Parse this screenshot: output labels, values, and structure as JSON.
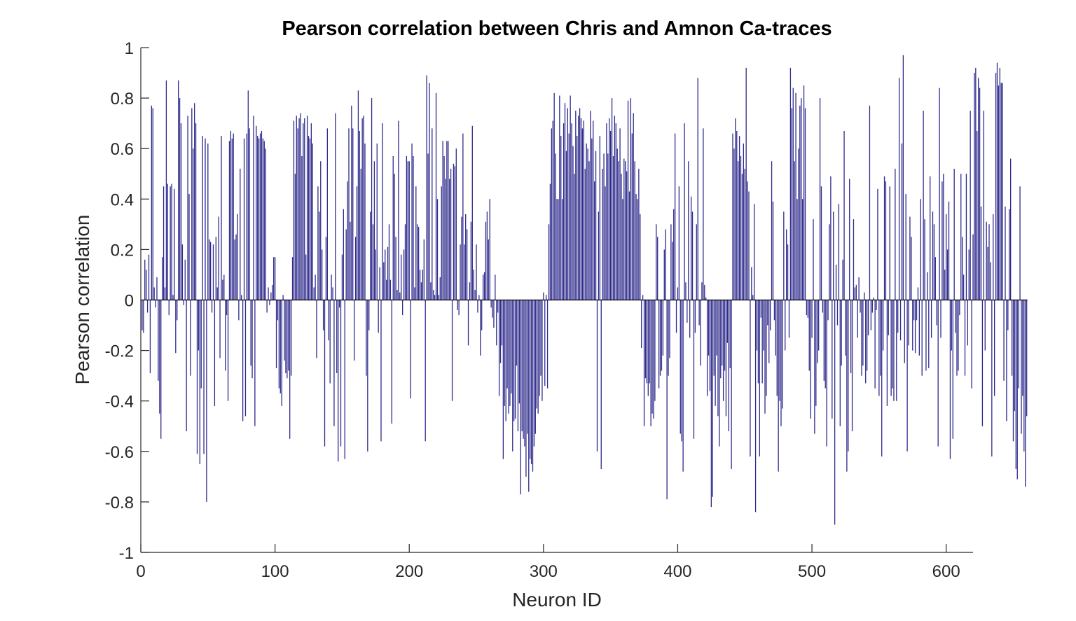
{
  "chart_data": {
    "type": "bar",
    "title": "Pearson correlation between Chris and Amnon Ca-traces",
    "xlabel": "Neuron ID",
    "ylabel": "Pearson correlation",
    "xlim": [
      0,
      620
    ],
    "ylim": [
      -1,
      1
    ],
    "xticks": [
      "0",
      "100",
      "200",
      "300",
      "400",
      "500",
      "600"
    ],
    "yticks": [
      "1",
      "0.8",
      "0.6",
      "0.4",
      "0.2",
      "0",
      "-0.2",
      "-0.4",
      "-0.6",
      "-0.8",
      "-1"
    ],
    "grid": false,
    "bar_color": "#2e2a8c",
    "note_values": "One bar per neuron (IDs 1-620); values read approximately from plot",
    "values": [
      -0.12,
      -0.13,
      0.16,
      0.12,
      -0.05,
      0.18,
      -0.29,
      0.77,
      0.76,
      0.05,
      -0.03,
      0.09,
      -0.32,
      -0.45,
      -0.55,
      0.17,
      0.45,
      0.05,
      0.87,
      0.46,
      -0.06,
      0.45,
      0.46,
      0.02,
      0.44,
      -0.21,
      -0.08,
      0.87,
      0.8,
      0.7,
      0.22,
      -0.02,
      0.16,
      -0.52,
      0.73,
      0.42,
      -0.3,
      0.76,
      0.6,
      0.78,
      0.7,
      -0.61,
      -0.2,
      -0.65,
      -0.35,
      0.65,
      -0.61,
      0.64,
      -0.8,
      0.62,
      0.24,
      0.23,
      -0.05,
      0.22,
      -0.42,
      0.25,
      0.05,
      0.33,
      -0.23,
      0.65,
      0.08,
      0.1,
      -0.28,
      -0.06,
      -0.4,
      0.63,
      0.67,
      0.64,
      0.66,
      0.24,
      0.26,
      0.34,
      -0.08,
      0.52,
      0.02,
      -0.48,
      0.64,
      -0.46,
      0.66,
      0.83,
      0.68,
      -0.26,
      -0.31,
      0.73,
      -0.5,
      0.69,
      0.65,
      0.64,
      0.66,
      0.67,
      0.64,
      0.63,
      0.6,
      -0.05,
      0.05,
      -0.02,
      0.03,
      0.06,
      0.17,
      0.17,
      -0.27,
      -0.08,
      -0.35,
      -0.37,
      -0.42,
      0.02,
      -0.24,
      -0.29,
      -0.31,
      -0.28,
      -0.55,
      -0.3,
      0.17,
      0.71,
      0.5,
      0.73,
      0.68,
      0.72,
      0.74,
      0.57,
      0.7,
      0.72,
      0.18,
      0.73,
      0.65,
      0.64,
      0.7,
      0.62,
      0.05,
      0.1,
      -0.23,
      0.45,
      0.35,
      0.55,
      0.2,
      -0.12,
      -0.58,
      0.25,
      0.68,
      -0.16,
      -0.33,
      0.1,
      0.05,
      -0.5,
      0.74,
      -0.29,
      -0.64,
      -0.03,
      -0.58,
      0.18,
      0.36,
      -0.63,
      0.28,
      0.47,
      0.68,
      0.31,
      0.77,
      0.68,
      -0.24,
      0.25,
      0.45,
      0.83,
      0.67,
      0.52,
      0.72,
      0.73,
      0.62,
      -0.3,
      -0.6,
      -0.12,
      0.35,
      0.8,
      0.3,
      0.55,
      0.2,
      0.62,
      -0.13,
      0.13,
      -0.56,
      0.7,
      0.15,
      0.2,
      0.08,
      0.21,
      0.3,
      0.08,
      -0.49,
      0.57,
      0.5,
      0.25,
      0.04,
      0.71,
      0.03,
      0.18,
      -0.06,
      0.2,
      0.3,
      0.57,
      0.55,
      0.55,
      -0.39,
      0.62,
      0.57,
      0.05,
      0.45,
      0.3,
      0.29,
      0.12,
      0.07,
      0.12,
      0.24,
      -0.56,
      0.89,
      0.58,
      0.86,
      0.07,
      0.68,
      0.04,
      0.02,
      0.82,
      0.4,
      0.02,
      0.09,
      0.45,
      0.63,
      0.57,
      0.48,
      0.63,
      0.63,
      0.48,
      0.52,
      -0.4,
      0.54,
      0.53,
      0.6,
      -0.04,
      -0.06,
      0.22,
      0.33,
      0.66,
      0.22,
      0.34,
      0.28,
      -0.18,
      0.07,
      0.31,
      0.69,
      0.12,
      0.04,
      0.22,
      -0.05,
      0.02,
      -0.22,
      -0.12,
      0.1,
      0.11,
      0.31,
      0.35,
      0.24,
      0.4,
      -0.03,
      -0.07,
      -0.11,
      0.1,
      -0.18,
      -0.05,
      -0.38,
      -0.25,
      -0.18,
      -0.63,
      -0.42,
      -0.48,
      -0.35,
      -0.45,
      -0.42,
      -0.37,
      -0.6,
      -0.48,
      -0.47,
      -0.26,
      -0.52,
      -0.41,
      -0.77,
      -0.52,
      -0.55,
      -0.58,
      -0.7,
      -0.53,
      -0.76,
      -0.63,
      -0.65,
      -0.68,
      -0.58,
      -0.53,
      -0.43,
      -0.45,
      -0.38,
      -0.3,
      -0.4,
      0.03,
      -0.34,
      0.02,
      -0.35,
      0.3,
      0.46,
      0.68,
      0.71,
      0.82,
      0.58,
      0.4,
      0.4,
      0.81,
      0.65,
      0.4,
      0.7,
      0.78,
      0.59,
      0.76,
      0.66,
      0.81,
      0.7,
      0.61,
      0.5,
      0.75,
      0.65,
      0.73,
      0.76,
      0.72,
      0.68,
      0.71,
      0.52,
      0.62,
      0.6,
      0.55,
      0.75,
      0.64,
      0.71,
      0.47,
      0.59,
      -0.6,
      0.35,
      0.65,
      -0.67,
      0.52,
      0.58,
      0.45,
      0.7,
      0.58,
      0.72,
      0.67,
      0.8,
      0.57,
      0.73,
      0.7,
      0.6,
      0.55,
      0.68,
      0.5,
      0.4,
      0.56,
      0.55,
      0.51,
      0.79,
      0.43,
      0.8,
      0.66,
      0.74,
      0.55,
      0.42,
      0.4,
      0.52,
      0.34,
      -0.19,
      0.02,
      -0.5,
      -0.31,
      -0.33,
      -0.38,
      -0.33,
      -0.5,
      -0.45,
      -0.47,
      -0.4,
      0.3,
      0.25,
      -0.35,
      -0.3,
      -0.28,
      -0.22,
      0.2,
      0.28,
      -0.79,
      -0.3,
      -0.23,
      0.3,
      0.23,
      0.36,
      0.66,
      -0.13,
      0.05,
      0.45,
      -0.53,
      -0.56,
      -0.68,
      0.7,
      0.07,
      -0.09,
      0.55,
      -0.15,
      0.41,
      0.35,
      -0.55,
      -0.13,
      0.3,
      0.88,
      -0.1,
      -0.26,
      0.07,
      0.68,
      0.06,
      0.01,
      -0.38,
      -0.22,
      -0.36,
      -0.82,
      -0.78,
      -0.3,
      -0.42,
      -0.22,
      -0.46,
      -0.58,
      -0.31,
      -0.26,
      -0.4,
      -0.28,
      -0.46,
      -0.17,
      -0.52,
      -0.27,
      -0.67,
      0.66,
      0.6,
      0.72,
      0.67,
      0.55,
      0.65,
      0.57,
      0.5,
      0.62,
      0.52,
      0.92,
      0.47,
      0.43,
      -0.62,
      0.13,
      0.02,
      0.38,
      -0.84,
      -0.2,
      -0.33,
      -0.62,
      -0.07,
      -0.33,
      -0.2,
      -0.45,
      -0.38,
      -0.1,
      -0.25,
      -0.12,
      0.55,
      0.39,
      -0.08,
      -0.22,
      -0.38,
      -0.68,
      -0.4,
      -0.5,
      -0.43,
      0.35,
      -0.2,
      0.28,
      0.22,
      -0.15,
      0.92,
      0.76,
      0.84,
      0.55,
      0.82,
      0.4,
      0.6,
      0.77,
      0.8,
      0.4,
      0.85,
      0.76,
      -0.06,
      -0.07,
      -0.28,
      -0.47,
      -0.15,
      0.32,
      -0.53,
      -0.42,
      -0.25,
      -0.2,
      0.8,
      0.45,
      -0.05,
      -0.32,
      -0.35,
      -0.58,
      -0.08,
      0.3,
      0.49,
      -0.47,
      0.35,
      -0.89,
      0.14,
      -0.1,
      0.38,
      -0.5,
      -0.26,
      0.16,
      0.67,
      -0.22,
      -0.68,
      -0.6,
      0.48,
      -0.29,
      -0.52,
      0.32,
      0.05,
      0.06,
      -0.15,
      0.09,
      -0.05,
      -0.3,
      -0.26,
      0.03,
      -0.33,
      -0.28,
      -0.14,
      0.77,
      -0.12,
      -0.05,
      0.01,
      -0.35,
      -0.04,
      0.44,
      -0.38,
      -0.3,
      -0.62,
      -0.2,
      0.49,
      0.47,
      -0.42,
      -0.14,
      0.45,
      -0.38,
      -0.35,
      -0.4,
      0.52,
      -0.4,
      -0.13,
      0.88,
      -0.16,
      0.62,
      0.97,
      -0.25,
      0.42,
      -0.6,
      -0.18,
      0.33,
      0.25,
      -0.2,
      -0.08,
      -0.21,
      -0.08,
      0.05,
      -0.22,
      0.4,
      -0.3,
      0.75,
      0.32,
      -0.28,
      0.11,
      -0.27,
      0.49,
      -0.15,
      0.35,
      0.3,
      0.17,
      -0.1,
      -0.58,
      0.84,
      -0.15,
      0.47,
      0.5,
      0.12,
      0.34,
      0.2,
      0.39,
      -0.63,
      -0.2,
      -0.55,
      0.52,
      -0.13,
      -0.3,
      -0.28,
      -0.06,
      0.5,
      0.25,
      0.1,
      -0.3,
      0.5,
      -0.18,
      0.2,
      0.75,
      -0.35,
      0.26,
      0.9,
      0.92,
      0.67,
      0.88,
      0.84,
      0.37,
      -0.5,
      0.75,
      -0.2,
      0.31,
      0.21,
      0.3,
      0.15,
      -0.62,
      0.34,
      -0.38,
      0.9,
      0.94,
      0.85,
      0.92,
      0.86,
      0.86,
      -0.32,
      0.37,
      -0.48,
      -0.12,
      0.36,
      0.56,
      -0.3,
      -0.56,
      -0.44,
      -0.67,
      -0.71,
      -0.35,
      0.45,
      -0.53,
      -0.38,
      -0.6,
      -0.74,
      -0.46
    ]
  }
}
